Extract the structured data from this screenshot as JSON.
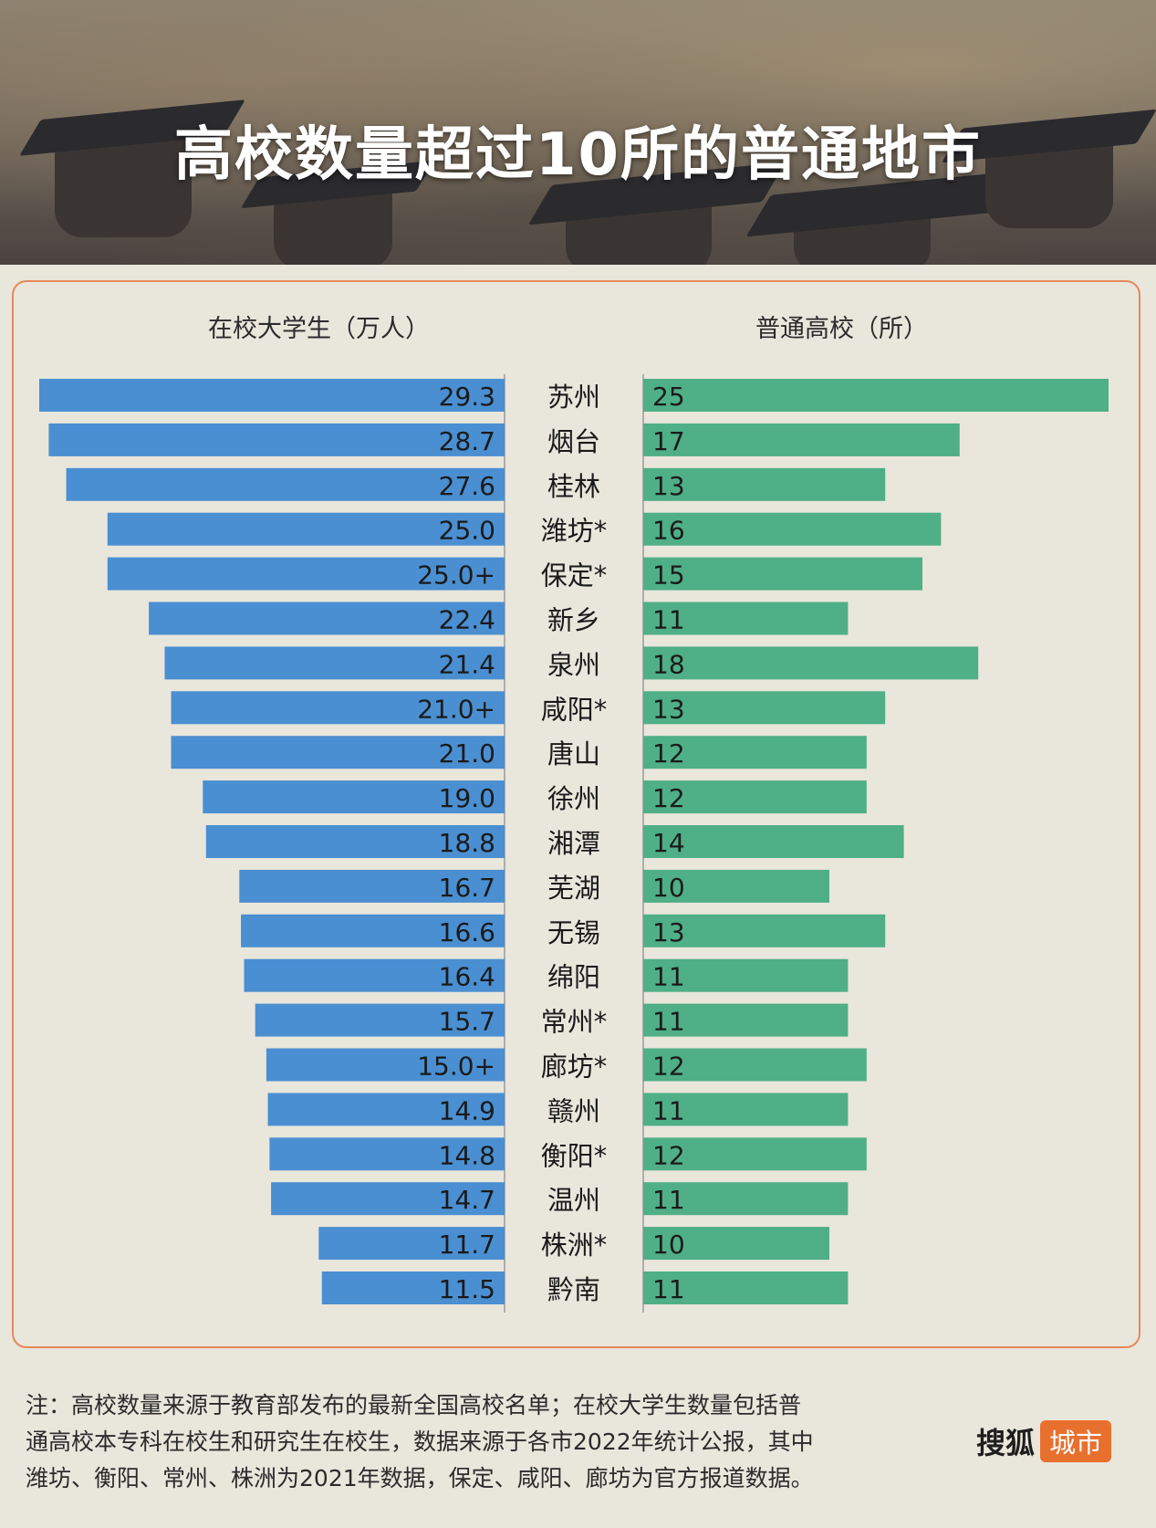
{
  "header": {
    "title": "高校数量超过10所的普通地市"
  },
  "colors": {
    "students": "#4a8fd1",
    "schools": "#4faf86",
    "border": "#e5895a",
    "brand_tag": "#e8702e"
  },
  "chart_data": {
    "type": "bar",
    "left_header": "在校大学生（万人）",
    "right_header": "普通高校（所）",
    "categories": [
      "苏州",
      "烟台",
      "桂林",
      "潍坊*",
      "保定*",
      "新乡",
      "泉州",
      "咸阳*",
      "唐山",
      "徐州",
      "湘潭",
      "芜湖",
      "无锡",
      "绵阳",
      "常州*",
      "廊坊*",
      "赣州",
      "衡阳*",
      "温州",
      "株洲*",
      "黔南"
    ],
    "series": [
      {
        "name": "在校大学生（万人）",
        "values": [
          29.3,
          28.7,
          27.6,
          25.0,
          25.0,
          22.4,
          21.4,
          21.0,
          21.0,
          19.0,
          18.8,
          16.7,
          16.6,
          16.4,
          15.7,
          15.0,
          14.9,
          14.8,
          14.7,
          11.7,
          11.5
        ],
        "labels": [
          "29.3",
          "28.7",
          "27.6",
          "25.0",
          "25.0+",
          "22.4",
          "21.4",
          "21.0+",
          "21.0",
          "19.0",
          "18.8",
          "16.7",
          "16.6",
          "16.4",
          "15.7",
          "15.0+",
          "14.9",
          "14.8",
          "14.7",
          "11.7",
          "11.5"
        ]
      },
      {
        "name": "普通高校（所）",
        "values": [
          25,
          17,
          13,
          16,
          15,
          11,
          18,
          13,
          12,
          12,
          14,
          10,
          13,
          11,
          11,
          12,
          11,
          12,
          11,
          10,
          11
        ],
        "labels": [
          "25",
          "17",
          "13",
          "16",
          "15",
          "11",
          "18",
          "13",
          "12",
          "12",
          "14",
          "10",
          "13",
          "11",
          "11",
          "12",
          "11",
          "12",
          "11",
          "10",
          "11"
        ]
      }
    ]
  },
  "note": {
    "lines": [
      "注：高校数量来源于教育部发布的最新全国高校名单；在校大学生数量包括普",
      "通高校本专科在校生和研究生在校生，数据来源于各市2022年统计公报，其中",
      "潍坊、衡阳、常州、株洲为2021年数据，保定、咸阳、廊坊为官方报道数据。"
    ]
  },
  "brand": {
    "name": "搜狐",
    "tag": "城市"
  }
}
